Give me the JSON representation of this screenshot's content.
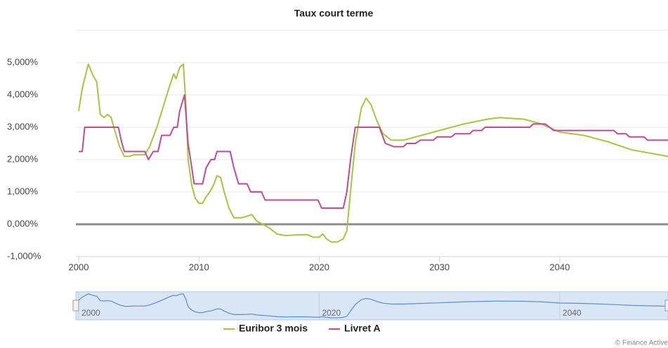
{
  "chart_data": {
    "type": "line",
    "title": "Taux court terme",
    "credits": "© Finance Active",
    "xlim": [
      2000,
      2049
    ],
    "xticks": [
      2000,
      2010,
      2020,
      2030,
      2040
    ],
    "ylim": [
      -1,
      6
    ],
    "yticks": [
      {
        "value": -1,
        "label": "-1,000%"
      },
      {
        "value": 0,
        "label": "0,000%"
      },
      {
        "value": 1,
        "label": "1,000%"
      },
      {
        "value": 2,
        "label": "2,000%"
      },
      {
        "value": 3,
        "label": "3,000%"
      },
      {
        "value": 4,
        "label": "4,000%"
      },
      {
        "value": 5,
        "label": "5,000%"
      }
    ],
    "grid": true,
    "plot_lines": [
      0
    ],
    "legend": "bottom",
    "navigator": {
      "xticks": [
        2000,
        2020,
        2040
      ]
    },
    "series": [
      {
        "name": "Euribor 3 mois",
        "color": "#a2c83c",
        "x": [
          2000.0,
          2000.3,
          2000.8,
          2001.2,
          2001.5,
          2001.8,
          2002.1,
          2002.4,
          2002.7,
          2003.0,
          2003.4,
          2003.8,
          2004.2,
          2004.6,
          2005.0,
          2005.5,
          2005.9,
          2006.5,
          2007.0,
          2007.5,
          2007.9,
          2008.1,
          2008.4,
          2008.7,
          2008.9,
          2009.1,
          2009.4,
          2009.7,
          2010.0,
          2010.3,
          2010.6,
          2010.9,
          2011.2,
          2011.5,
          2011.8,
          2012.1,
          2012.5,
          2012.9,
          2013.5,
          2014.0,
          2014.4,
          2014.8,
          2015.3,
          2015.8,
          2016.5,
          2017.2,
          2018.0,
          2019.0,
          2019.5,
          2020.0,
          2020.3,
          2020.6,
          2021.0,
          2021.5,
          2022.0,
          2022.3,
          2022.6,
          2023.0,
          2023.5,
          2023.9,
          2024.3,
          2024.8,
          2025.3,
          2026.0,
          2027.0,
          2028.0,
          2030.0,
          2032.0,
          2034.0,
          2035.0,
          2037.0,
          2038.5,
          2040.0,
          2042.0,
          2044.0,
          2046.0,
          2049.0
        ],
        "values": [
          3.5,
          4.2,
          4.95,
          4.6,
          4.4,
          3.4,
          3.3,
          3.4,
          3.3,
          2.9,
          2.4,
          2.1,
          2.1,
          2.15,
          2.15,
          2.15,
          2.4,
          3.0,
          3.6,
          4.2,
          4.65,
          4.5,
          4.85,
          4.95,
          3.8,
          2.0,
          1.2,
          0.8,
          0.65,
          0.65,
          0.85,
          1.0,
          1.2,
          1.5,
          1.45,
          1.0,
          0.5,
          0.2,
          0.2,
          0.25,
          0.3,
          0.1,
          0.0,
          -0.1,
          -0.3,
          -0.35,
          -0.33,
          -0.32,
          -0.4,
          -0.4,
          -0.3,
          -0.45,
          -0.55,
          -0.55,
          -0.45,
          -0.2,
          1.0,
          2.5,
          3.6,
          3.9,
          3.7,
          3.2,
          2.8,
          2.6,
          2.6,
          2.7,
          2.9,
          3.1,
          3.25,
          3.3,
          3.25,
          3.1,
          2.85,
          2.75,
          2.55,
          2.3,
          2.1
        ]
      },
      {
        "name": "Livret A",
        "color": "#c34a96",
        "x": [
          2000.0,
          2000.3,
          2000.5,
          2003.3,
          2003.6,
          2003.8,
          2005.5,
          2005.8,
          2006.2,
          2006.6,
          2006.9,
          2007.6,
          2007.9,
          2008.2,
          2008.4,
          2008.8,
          2009.1,
          2009.4,
          2009.6,
          2010.3,
          2010.6,
          2011.0,
          2011.3,
          2011.5,
          2012.6,
          2012.9,
          2013.3,
          2014.0,
          2014.3,
          2015.2,
          2015.5,
          2019.9,
          2020.2,
          2022.0,
          2022.3,
          2022.6,
          2023.0,
          2025.0,
          2025.5,
          2026.2,
          2027.0,
          2027.3,
          2028.0,
          2028.4,
          2029.5,
          2029.8,
          2031.0,
          2031.3,
          2032.5,
          2032.8,
          2033.5,
          2033.8,
          2037.5,
          2037.8,
          2038.8,
          2039.5,
          2044.5,
          2044.8,
          2045.5,
          2045.8,
          2047.0,
          2047.3,
          2049.0
        ],
        "values": [
          2.25,
          2.25,
          3.0,
          3.0,
          2.5,
          2.25,
          2.25,
          2.0,
          2.25,
          2.25,
          2.75,
          2.75,
          3.0,
          3.0,
          3.5,
          4.0,
          2.5,
          1.75,
          1.25,
          1.25,
          1.75,
          2.0,
          2.0,
          2.25,
          2.25,
          1.75,
          1.25,
          1.25,
          1.0,
          1.0,
          0.75,
          0.75,
          0.5,
          0.5,
          1.0,
          2.0,
          3.0,
          3.0,
          2.5,
          2.4,
          2.4,
          2.5,
          2.5,
          2.6,
          2.6,
          2.7,
          2.7,
          2.8,
          2.8,
          2.9,
          2.9,
          3.0,
          3.0,
          3.1,
          3.1,
          2.9,
          2.9,
          2.8,
          2.8,
          2.7,
          2.7,
          2.6,
          2.6
        ]
      }
    ]
  }
}
